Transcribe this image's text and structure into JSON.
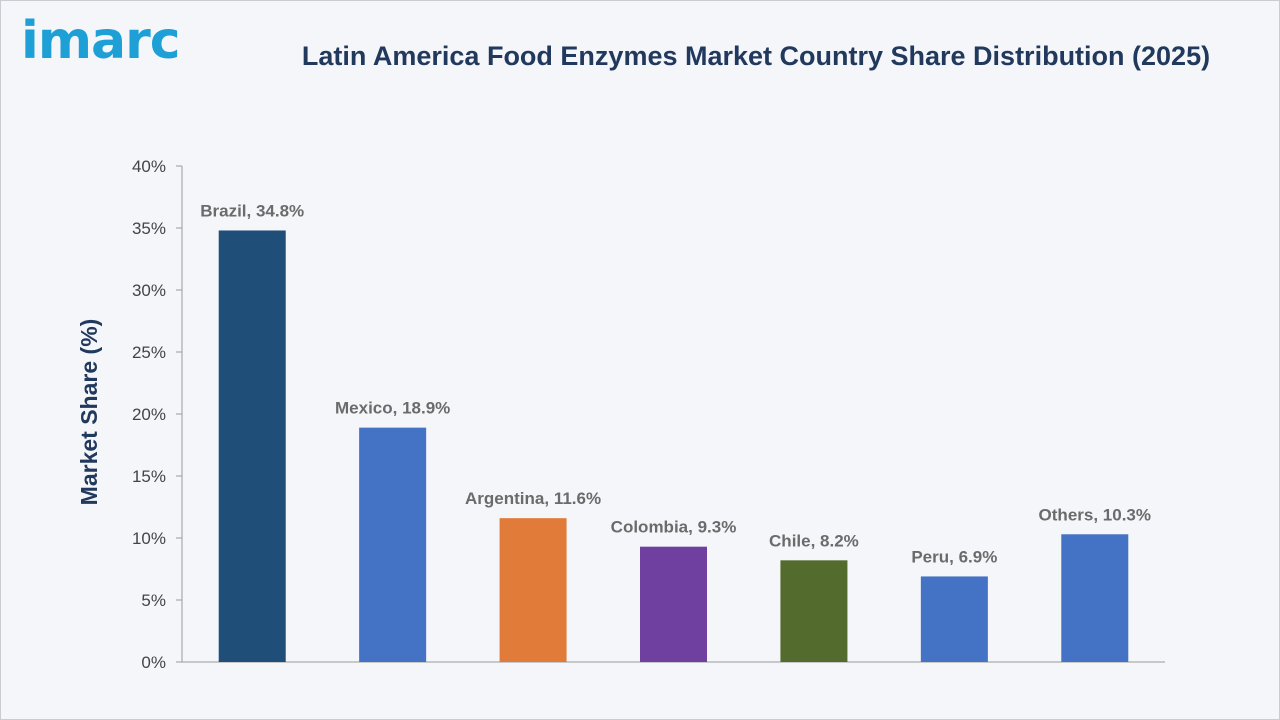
{
  "logo": {
    "text": "imarc"
  },
  "chart_data": {
    "type": "bar",
    "title": "Latin America Food Enzymes Market Country Share Distribution (2025)",
    "xlabel": "",
    "ylabel": "Market Share (%)",
    "ylim": [
      0,
      40
    ],
    "yticks": [
      "0%",
      "5%",
      "10%",
      "15%",
      "20%",
      "25%",
      "30%",
      "35%",
      "40%"
    ],
    "ytick_values": [
      0,
      5,
      10,
      15,
      20,
      25,
      30,
      35,
      40
    ],
    "categories": [
      "Brazil",
      "Mexico",
      "Argentina",
      "Colombia",
      "Chile",
      "Peru",
      "Others"
    ],
    "values": [
      34.8,
      18.9,
      11.6,
      9.3,
      8.2,
      6.9,
      10.3
    ],
    "data_labels": [
      "Brazil, 34.8%",
      "Mexico, 18.9%",
      "Argentina, 11.6%",
      "Colombia, 9.3%",
      "Chile, 8.2%",
      "Peru, 6.9%",
      "Others, 10.3%"
    ],
    "colors": [
      "#1f4e79",
      "#4472c4",
      "#e07b39",
      "#7040a0",
      "#546b2e",
      "#4472c4",
      "#4472c4"
    ],
    "grid": false,
    "legend": "none"
  }
}
